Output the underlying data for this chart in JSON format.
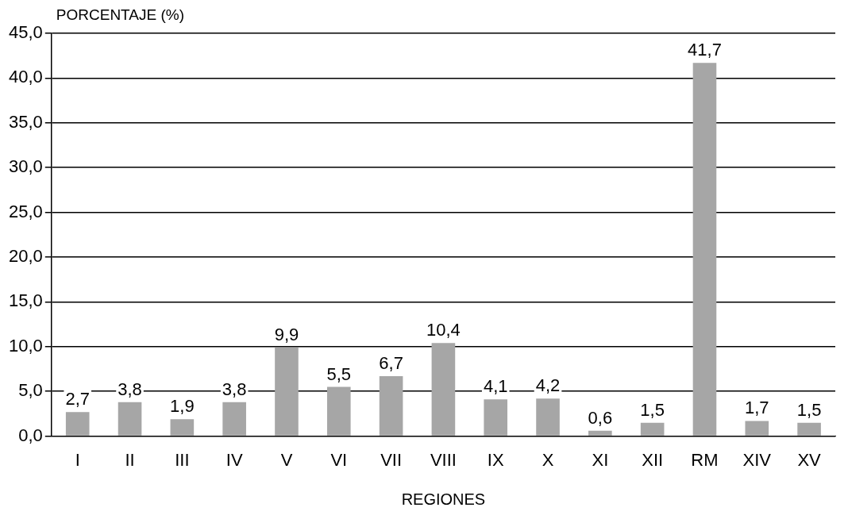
{
  "chart_data": {
    "type": "bar",
    "xlabel": "REGIONES",
    "ylabel": "PORCENTAJE (%)",
    "categories": [
      "I",
      "II",
      "III",
      "IV",
      "V",
      "VI",
      "VII",
      "VIII",
      "IX",
      "X",
      "XI",
      "XII",
      "RM",
      "XIV",
      "XV"
    ],
    "values": [
      2.7,
      3.8,
      1.9,
      3.8,
      9.9,
      5.5,
      6.7,
      10.4,
      4.1,
      4.2,
      0.6,
      1.5,
      41.7,
      1.7,
      1.5
    ],
    "value_labels": [
      "2,7",
      "3,8",
      "1,9",
      "3,8",
      "9,9",
      "5,5",
      "6,7",
      "10,4",
      "4,1",
      "4,2",
      "0,6",
      "1,5",
      "41,7",
      "1,7",
      "1,5"
    ],
    "color": "#a6a6a6",
    "ylim": [
      0,
      45
    ],
    "yticks": [
      {
        "value": 0,
        "label": "0,0"
      },
      {
        "value": 5,
        "label": "5,0"
      },
      {
        "value": 10,
        "label": "10,0"
      },
      {
        "value": 15,
        "label": "15,0"
      },
      {
        "value": 20,
        "label": "20,0"
      },
      {
        "value": 25,
        "label": "25,0"
      },
      {
        "value": 30,
        "label": "30,0"
      },
      {
        "value": 35,
        "label": "35,0"
      },
      {
        "value": 40,
        "label": "40,0"
      },
      {
        "value": 45,
        "label": "45,0"
      }
    ],
    "grid": "y",
    "legend": false
  }
}
